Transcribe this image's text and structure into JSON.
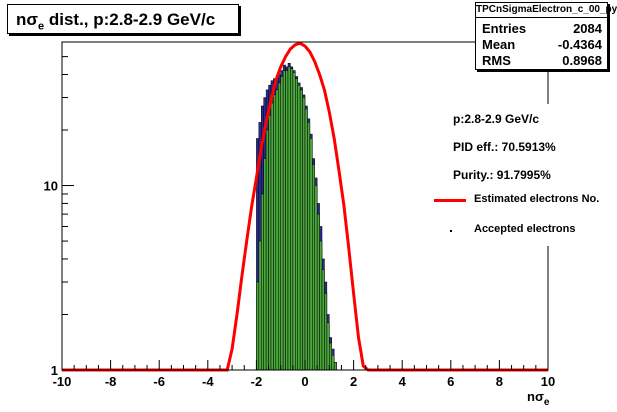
{
  "chart_data": {
    "type": "bar",
    "title_main": "nσ",
    "title_sub": "e",
    "title_rest": " dist., p:2.8-2.9 GeV/c",
    "xlabel_main": "nσ",
    "xlabel_sub": "e",
    "ylabel": "",
    "xlim": [
      -10,
      10
    ],
    "ylim": [
      1,
      60
    ],
    "yscale": "log",
    "x_ticks": [
      -10,
      -8,
      -6,
      -4,
      -2,
      0,
      2,
      4,
      6,
      8,
      10
    ],
    "y_tick_labels": [
      {
        "value": 1,
        "label": "1"
      },
      {
        "value": 10,
        "label": "10"
      }
    ],
    "stats": {
      "name": "TPCnSigmaElectron_c_00_py",
      "rows": [
        {
          "key": "Entries",
          "value": "2084"
        },
        {
          "key": "Mean",
          "value": "-0.4364"
        },
        {
          "key": "RMS",
          "value": "0.8968"
        }
      ]
    },
    "annotations": [
      "p:2.8-2.9 GeV/c",
      "PID eff.: 70.5913%",
      "Purity.: 91.7995%"
    ],
    "legend": [
      {
        "label": "Estimated electrons No.",
        "style": "line",
        "color": "#ff0000"
      },
      {
        "label": "Accepted electrons",
        "style": "marker",
        "color": "#000000"
      }
    ],
    "series": [
      {
        "name": "all",
        "color": "#2b2b8f",
        "bin_start": -2.0,
        "bin_width": 0.1,
        "values": [
          18,
          22,
          27,
          30,
          33,
          35,
          37,
          38,
          39,
          40,
          42,
          45,
          44,
          46,
          44,
          42,
          39,
          36,
          34,
          31,
          27,
          23,
          19,
          14,
          11,
          8,
          6,
          4,
          3,
          2,
          1.5,
          1.3,
          1.1,
          1.0,
          1.0,
          1.0,
          1.0,
          1.0,
          1.0,
          1.0
        ]
      },
      {
        "name": "accepted",
        "color": "#4aa83b",
        "bin_start": -2.0,
        "bin_width": 0.1,
        "values": [
          3,
          5,
          9,
          14,
          20,
          24,
          28,
          31,
          33,
          36,
          39,
          42,
          42,
          44,
          43,
          41,
          38,
          35,
          33,
          30,
          26,
          22,
          18,
          13,
          10,
          7,
          5,
          3.5,
          2.6,
          1.8,
          1.4,
          1.2,
          1.1,
          1.0,
          1.0,
          1.0,
          1.0,
          1.0,
          1.0,
          1.0
        ]
      }
    ],
    "fit": {
      "name": "Estimated electrons No.",
      "color": "#ff0000",
      "x": [
        -10,
        -3.2,
        -3.0,
        -2.8,
        -2.6,
        -2.4,
        -2.2,
        -2.0,
        -1.8,
        -1.6,
        -1.4,
        -1.2,
        -1.0,
        -0.8,
        -0.6,
        -0.4,
        -0.2,
        0.0,
        0.2,
        0.4,
        0.6,
        0.8,
        1.0,
        1.2,
        1.4,
        1.6,
        1.8,
        2.0,
        2.2,
        2.4,
        2.6,
        10
      ],
      "y": [
        1,
        1,
        1.3,
        2.0,
        3.2,
        5.0,
        7.6,
        11,
        16,
        22,
        29,
        37,
        44,
        50,
        55,
        58,
        59,
        57,
        53,
        47,
        40,
        33,
        25,
        18,
        12,
        7.8,
        4.6,
        2.6,
        1.5,
        1.05,
        1,
        1
      ]
    }
  }
}
